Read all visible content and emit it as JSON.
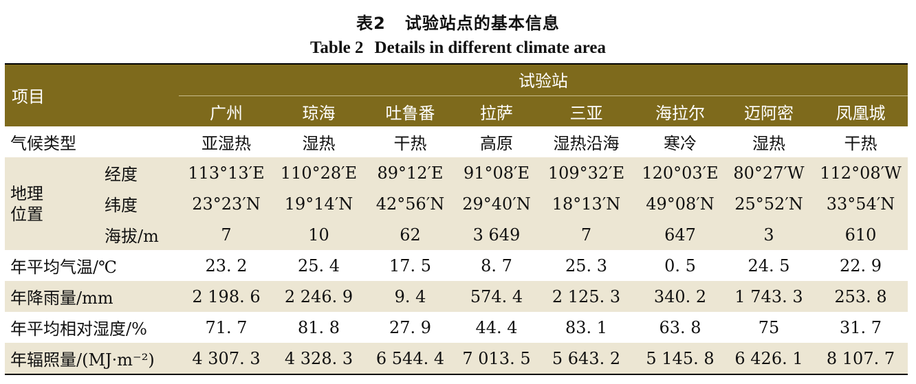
{
  "caption": {
    "cn_label": "表2",
    "cn_text": "试验站点的基本信息",
    "en_label": "Table 2",
    "en_text": "Details in different climate area"
  },
  "header": {
    "item": "项目",
    "group": "试验站",
    "stations": [
      "广州",
      "琼海",
      "吐鲁番",
      "拉萨",
      "三亚",
      "海拉尔",
      "迈阿密",
      "凤凰城"
    ]
  },
  "rows": {
    "climate": {
      "label": "气候类型",
      "values": [
        "亚湿热",
        "湿热",
        "干热",
        "高原",
        "湿热沿海",
        "寒冷",
        "湿热",
        "干热"
      ]
    },
    "geo_label": [
      "地理",
      "位置"
    ],
    "longitude": {
      "label": "经度",
      "values": [
        "113°13′E",
        "110°28′E",
        "89°12′E",
        "91°08′E",
        "109°32′E",
        "120°03′E",
        "80°27′W",
        "112°08′W"
      ]
    },
    "latitude": {
      "label": "纬度",
      "values": [
        "23°23′N",
        "19°14′N",
        "42°56′N",
        "29°40′N",
        "18°13′N",
        "49°08′N",
        "25°52′N",
        "33°54′N"
      ]
    },
    "altitude": {
      "label": "海拔/m",
      "values": [
        "7",
        "10",
        "62",
        "3 649",
        "7",
        "647",
        "3",
        "610"
      ]
    },
    "temperature": {
      "label": "年平均气温/℃",
      "values": [
        "23. 2",
        "25. 4",
        "17. 5",
        "8. 7",
        "25. 3",
        "0. 5",
        "24. 5",
        "22. 9"
      ]
    },
    "rainfall": {
      "label": "年降雨量/mm",
      "values": [
        "2 198. 6",
        "2 246. 9",
        "9. 4",
        "574. 4",
        "2 125. 3",
        "340. 2",
        "1 743. 3",
        "253. 8"
      ]
    },
    "humidity": {
      "label": "年平均相对湿度/%",
      "values": [
        "71. 7",
        "81. 8",
        "27. 9",
        "44. 4",
        "83. 1",
        "63. 8",
        "75",
        "31. 7"
      ]
    },
    "irradiance": {
      "label": "年辐照量/(MJ·m⁻²)",
      "values": [
        "4 307. 3",
        "4 328. 3",
        "6 544. 4",
        "7 013. 5",
        "5 643. 2",
        "5 145. 8",
        "6 426. 1",
        "8 107. 7"
      ]
    }
  }
}
